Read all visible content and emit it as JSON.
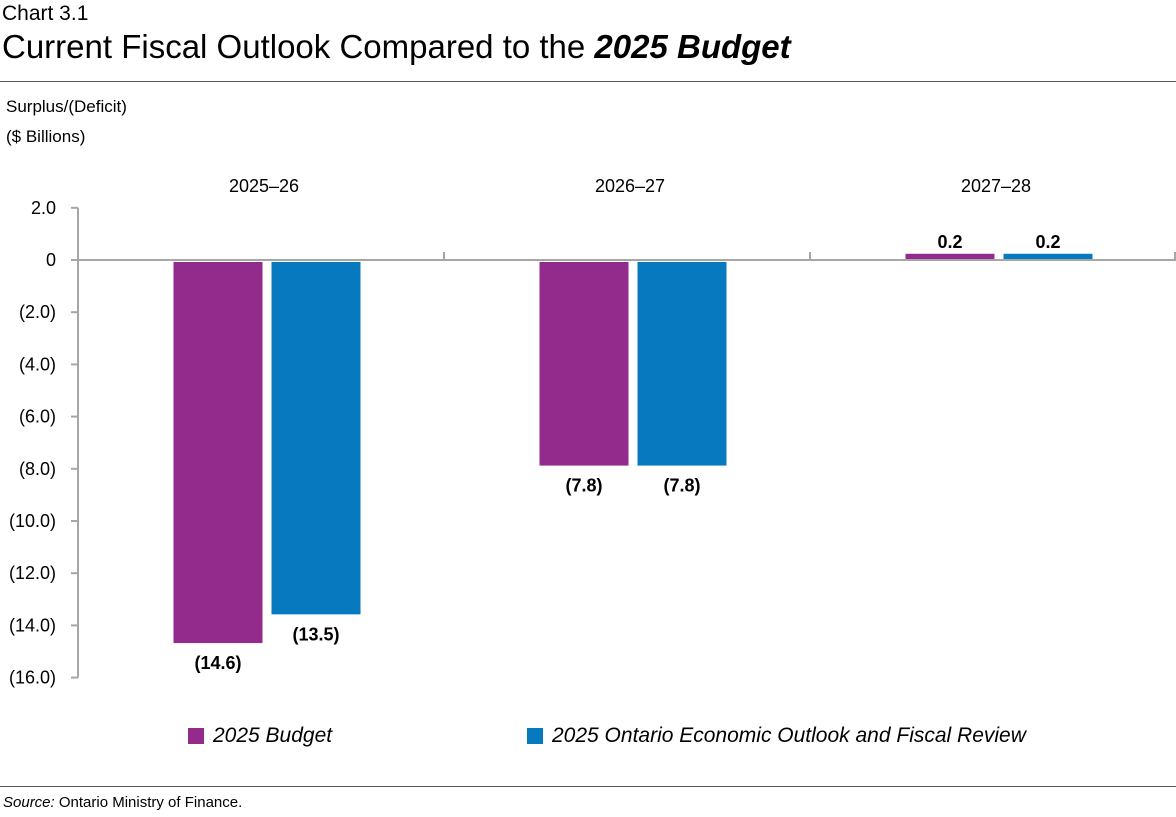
{
  "chart_label": "Chart 3.1",
  "title_main": "Current Fiscal Outlook Compared to the ",
  "title_italic": "2025 Budget",
  "source_label": "Source:",
  "source_text": " Ontario Ministry of Finance.",
  "chart_data": {
    "type": "bar",
    "ylabel_line1": "Surplus/(Deficit)",
    "ylabel_line2": "($ Billions)",
    "categories": [
      "2025–26",
      "2026–27",
      "2027–28"
    ],
    "ylim": [
      -16,
      2
    ],
    "yticks": [
      2,
      0,
      -2,
      -4,
      -6,
      -8,
      -10,
      -12,
      -14,
      -16
    ],
    "ytick_labels": [
      "2.0",
      "0",
      "(2.0)",
      "(4.0)",
      "(6.0)",
      "(8.0)",
      "(10.0)",
      "(12.0)",
      "(14.0)",
      "(16.0)"
    ],
    "grid": false,
    "legend_position": "bottom",
    "series": [
      {
        "name": "2025 Budget",
        "color": "#922B8C",
        "values": [
          -14.6,
          -7.8,
          0.2
        ],
        "labels": [
          "(14.6)",
          "(7.8)",
          "0.2"
        ]
      },
      {
        "name": "2025 Ontario Economic Outlook and Fiscal Review",
        "color": "#0779BF",
        "values": [
          -13.5,
          -7.8,
          0.2
        ],
        "labels": [
          "(13.5)",
          "(7.8)",
          "0.2"
        ]
      }
    ]
  }
}
